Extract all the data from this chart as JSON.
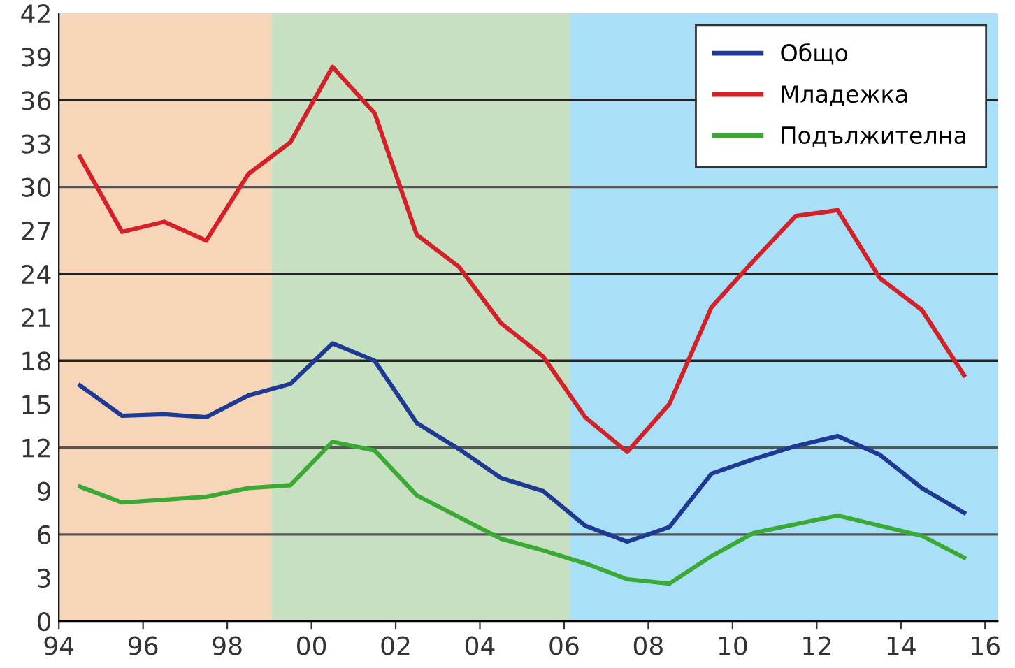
{
  "chart_data": {
    "type": "line",
    "x": [
      1994.5,
      1995.5,
      1996.5,
      1997.5,
      1998.5,
      1999.5,
      2000.5,
      2001.5,
      2002.5,
      2003.5,
      2004.5,
      2005.5,
      2006.5,
      2007.5,
      2008.5,
      2009.5,
      2010.5,
      2011.5,
      2012.5,
      2013.5,
      2014.5,
      2015.5
    ],
    "series": [
      {
        "name": "Общо",
        "color": "#1f3a93",
        "values": [
          16.3,
          14.2,
          14.3,
          14.1,
          15.6,
          16.4,
          19.2,
          18.0,
          13.7,
          11.9,
          9.9,
          9.0,
          6.6,
          5.5,
          6.5,
          10.2,
          11.2,
          12.1,
          12.8,
          11.5,
          9.2,
          7.5
        ]
      },
      {
        "name": "Младежка",
        "color": "#d42027",
        "values": [
          32.1,
          26.9,
          27.6,
          26.3,
          30.9,
          33.1,
          38.3,
          35.1,
          26.7,
          24.5,
          20.6,
          18.3,
          14.1,
          11.7,
          15.0,
          21.7,
          24.9,
          28.0,
          28.4,
          23.7,
          21.5,
          17.0
        ]
      },
      {
        "name": "Подължителна",
        "color": "#3aaa35",
        "values": [
          9.3,
          8.2,
          8.4,
          8.6,
          9.2,
          9.4,
          12.4,
          11.8,
          8.7,
          7.2,
          5.7,
          4.9,
          4.0,
          2.9,
          2.6,
          4.5,
          6.1,
          6.7,
          7.3,
          6.6,
          5.9,
          4.4
        ]
      }
    ],
    "xlim": [
      1994,
      2016.3
    ],
    "xticks": [
      {
        "value": 1994,
        "label": "94"
      },
      {
        "value": 1996,
        "label": "96"
      },
      {
        "value": 1998,
        "label": "98"
      },
      {
        "value": 2000,
        "label": "00"
      },
      {
        "value": 2002,
        "label": "02"
      },
      {
        "value": 2004,
        "label": "04"
      },
      {
        "value": 2006,
        "label": "06"
      },
      {
        "value": 2008,
        "label": "08"
      },
      {
        "value": 2010,
        "label": "10"
      },
      {
        "value": 2012,
        "label": "12"
      },
      {
        "value": 2014,
        "label": "14"
      },
      {
        "value": 2016,
        "label": "16"
      }
    ],
    "ylim": [
      0,
      42
    ],
    "yticks": [
      0,
      3,
      6,
      9,
      12,
      15,
      18,
      21,
      24,
      27,
      30,
      33,
      36,
      39,
      42
    ],
    "bands": [
      {
        "axis": "x",
        "from": 1994,
        "to": 1999.05,
        "color": "#f7d5b8"
      },
      {
        "axis": "x",
        "from": 1999.05,
        "to": 2006.15,
        "color": "#c8e0c2"
      },
      {
        "axis": "x",
        "from": 2006.15,
        "to": 2016.3,
        "color": "#aadff8"
      }
    ],
    "ref_lines": [
      {
        "axis": "y",
        "value": 6,
        "color": "#555555"
      },
      {
        "axis": "y",
        "value": 12,
        "color": "#555555"
      },
      {
        "axis": "y",
        "value": 18,
        "color": "#222222"
      },
      {
        "axis": "y",
        "value": 24,
        "color": "#222222"
      },
      {
        "axis": "y",
        "value": 30,
        "color": "#555555"
      },
      {
        "axis": "y",
        "value": 36,
        "color": "#222222"
      }
    ],
    "grid": false,
    "legend": "top right",
    "line_style": "solid",
    "marker": "none"
  }
}
